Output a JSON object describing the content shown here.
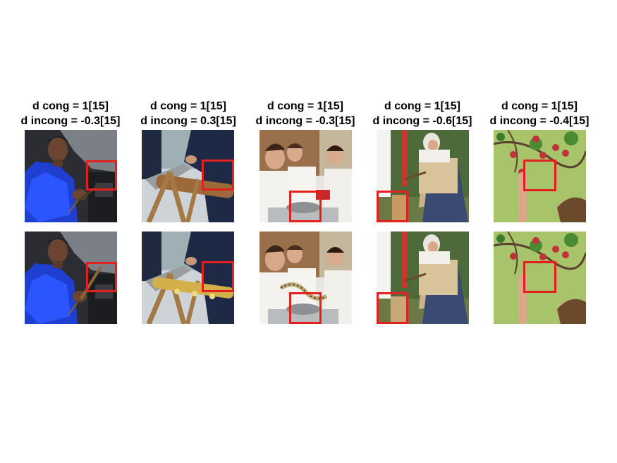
{
  "figure": {
    "panels": [
      {
        "line1": "d cong = 1[15]",
        "line2": "d incong = -0.3[15]",
        "scene": "mechanic",
        "top_object": "screwdriver",
        "bottom_object": "screwdriver (altered)"
      },
      {
        "line1": "d cong = 1[15]",
        "line2": "d incong = 0.3[15]",
        "scene": "man sawing log",
        "top_object": "handsaw",
        "bottom_object": "saxophone"
      },
      {
        "line1": "d cong = 1[15]",
        "line2": "d incong = -0.3[15]",
        "scene": "women cooking",
        "top_object": "pot",
        "bottom_object": "snake"
      },
      {
        "line1": "d cong = 1[15]",
        "line2": "d incong = -0.6[15]",
        "scene": "woman chopping wood",
        "top_object": "wood stump",
        "bottom_object": "paper bag"
      },
      {
        "line1": "d cong = 1[15]",
        "line2": "d incong = -0.4[15]",
        "scene": "child picking apples",
        "top_object": "apple",
        "bottom_object": "apple removed"
      }
    ],
    "colors": {
      "highlight_box": "#e51e1e",
      "text": "#000000"
    }
  }
}
